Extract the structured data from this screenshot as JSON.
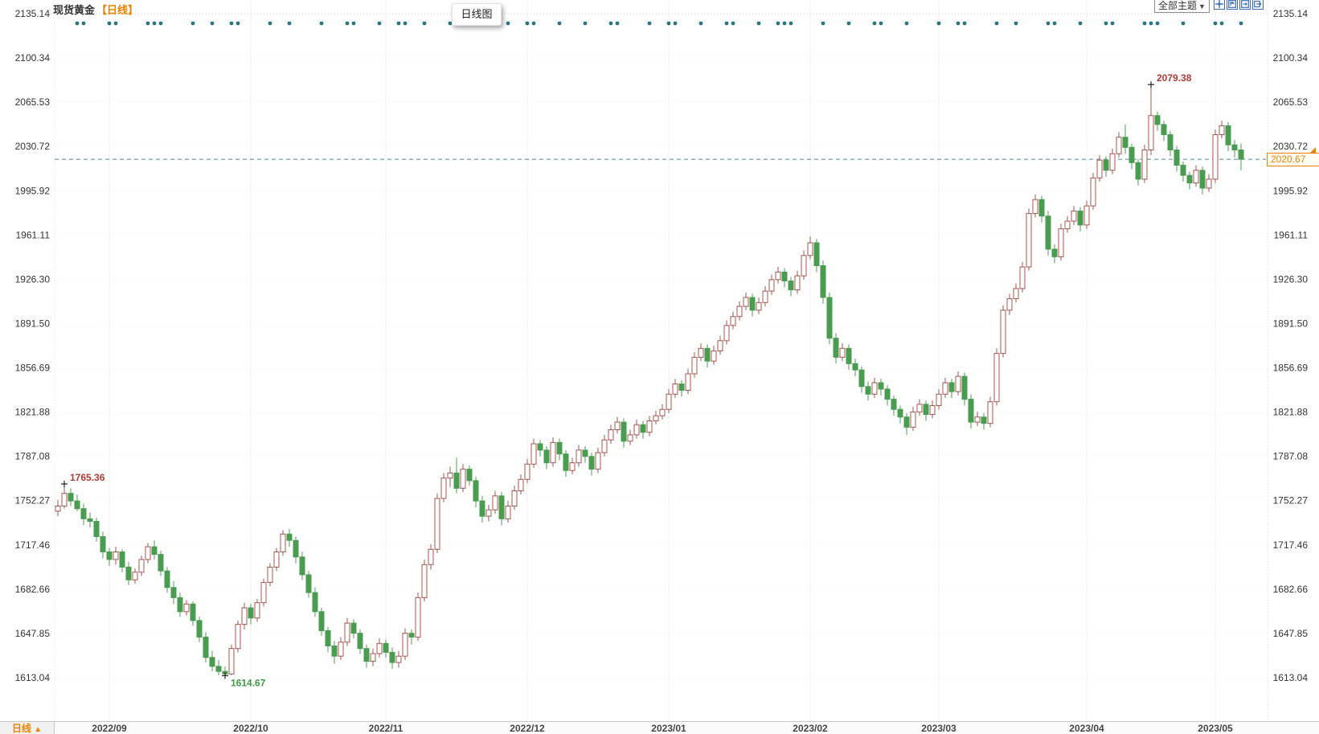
{
  "header": {
    "title": "现货黄金",
    "subtitle": "【日线】",
    "tooltip_label": "日线图",
    "theme_dropdown_label": "全部主题",
    "dropdown_arrow": "▼"
  },
  "toolbar": {
    "icons": [
      "crosshair-icon",
      "pane-up-icon",
      "pane-right-icon",
      "shift-forward-icon"
    ]
  },
  "footer": {
    "tab_label": "日线",
    "tab_arrow": "▲"
  },
  "colors": {
    "up_candle": "#a5544e",
    "down_candle": "#4a9c51",
    "event_dot": "#2b7486",
    "dashed_price_line": "#4b87a8",
    "grid_vertical": "#ececec",
    "grid_horizontal": "#f1f1f1",
    "grid_top_pink": "#f0c8c8",
    "axis_text": "#333333",
    "accent_orange": "#ef8200",
    "annotation_high": "#b13b32",
    "annotation_low": "#3f9d44"
  },
  "chart_data": {
    "type": "candlestick",
    "title": "现货黄金 日线图",
    "y_range": [
      1613.04,
      2135.14
    ],
    "y_ticks": [
      "2135.14",
      "2100.34",
      "2065.53",
      "2030.72",
      "1995.92",
      "1961.11",
      "1926.30",
      "1891.50",
      "1856.69",
      "1821.88",
      "1787.08",
      "1752.27",
      "1717.46",
      "1682.66",
      "1647.85",
      "1613.04"
    ],
    "x_ticks": [
      {
        "label": "2022/09",
        "idx": 8
      },
      {
        "label": "2022/10",
        "idx": 30
      },
      {
        "label": "2022/11",
        "idx": 51
      },
      {
        "label": "2022/12",
        "idx": 73
      },
      {
        "label": "2023/01",
        "idx": 95
      },
      {
        "label": "2023/02",
        "idx": 117
      },
      {
        "label": "2023/03",
        "idx": 137
      },
      {
        "label": "2023/04",
        "idx": 160
      },
      {
        "label": "2023/05",
        "idx": 180
      }
    ],
    "last_price": "2020.67",
    "annotations": [
      {
        "label": "1765.36",
        "idx": 1,
        "price": 1765.36,
        "type": "high",
        "placement": "above-right"
      },
      {
        "label": "1614.67",
        "idx": 26,
        "price": 1614.67,
        "type": "low",
        "placement": "below-right"
      },
      {
        "label": "2079.38",
        "idx": 170,
        "price": 2079.38,
        "type": "high",
        "placement": "above-right"
      }
    ],
    "event_dot_indices": [
      3,
      4,
      8,
      9,
      14,
      15,
      16,
      21,
      24,
      27,
      28,
      33,
      36,
      41,
      45,
      46,
      50,
      53,
      54,
      57,
      61,
      62,
      65,
      70,
      73,
      74,
      78,
      82,
      86,
      87,
      92,
      95,
      96,
      100,
      104,
      105,
      109,
      112,
      113,
      114,
      119,
      123,
      127,
      128,
      132,
      137,
      140,
      141,
      146,
      149,
      154,
      155,
      159,
      163,
      164,
      169,
      170,
      171,
      175,
      180,
      181,
      184
    ],
    "candles": [
      [
        1744,
        1753,
        1740,
        1748
      ],
      [
        1748,
        1765.36,
        1746,
        1758
      ],
      [
        1758,
        1762,
        1748,
        1752
      ],
      [
        1752,
        1757,
        1744,
        1746
      ],
      [
        1746,
        1750,
        1733,
        1738
      ],
      [
        1738,
        1743,
        1731,
        1736
      ],
      [
        1736,
        1739,
        1720,
        1724
      ],
      [
        1724,
        1728,
        1707,
        1712
      ],
      [
        1712,
        1715,
        1701,
        1706
      ],
      [
        1706,
        1716,
        1702,
        1712
      ],
      [
        1712,
        1714,
        1696,
        1700
      ],
      [
        1700,
        1704,
        1686,
        1690
      ],
      [
        1690,
        1699,
        1687,
        1696
      ],
      [
        1696,
        1709,
        1693,
        1706
      ],
      [
        1706,
        1719,
        1703,
        1716
      ],
      [
        1716,
        1721,
        1706,
        1710
      ],
      [
        1710,
        1713,
        1693,
        1697
      ],
      [
        1697,
        1700,
        1680,
        1684
      ],
      [
        1684,
        1689,
        1671,
        1676
      ],
      [
        1676,
        1680,
        1661,
        1665
      ],
      [
        1665,
        1674,
        1662,
        1671
      ],
      [
        1671,
        1673,
        1654,
        1658
      ],
      [
        1658,
        1661,
        1641,
        1645
      ],
      [
        1645,
        1649,
        1625,
        1629
      ],
      [
        1629,
        1634,
        1618,
        1622
      ],
      [
        1622,
        1627,
        1615,
        1618
      ],
      [
        1618,
        1622,
        1614.67,
        1616
      ],
      [
        1616,
        1639,
        1615,
        1636
      ],
      [
        1636,
        1658,
        1633,
        1655
      ],
      [
        1655,
        1672,
        1651,
        1668
      ],
      [
        1668,
        1671,
        1655,
        1660
      ],
      [
        1660,
        1675,
        1657,
        1672
      ],
      [
        1672,
        1691,
        1669,
        1688
      ],
      [
        1688,
        1703,
        1685,
        1700
      ],
      [
        1700,
        1715,
        1697,
        1712
      ],
      [
        1712,
        1729,
        1709,
        1726
      ],
      [
        1726,
        1730,
        1716,
        1721
      ],
      [
        1721,
        1724,
        1703,
        1708
      ],
      [
        1708,
        1712,
        1690,
        1694
      ],
      [
        1694,
        1697,
        1676,
        1680
      ],
      [
        1680,
        1684,
        1661,
        1665
      ],
      [
        1665,
        1668,
        1646,
        1650
      ],
      [
        1650,
        1653,
        1633,
        1638
      ],
      [
        1638,
        1642,
        1624,
        1630
      ],
      [
        1630,
        1645,
        1627,
        1641
      ],
      [
        1641,
        1660,
        1638,
        1656
      ],
      [
        1656,
        1659,
        1644,
        1648
      ],
      [
        1648,
        1651,
        1632,
        1636
      ],
      [
        1636,
        1639,
        1621,
        1626
      ],
      [
        1626,
        1636,
        1622,
        1632
      ],
      [
        1632,
        1644,
        1629,
        1640
      ],
      [
        1640,
        1643,
        1629,
        1633
      ],
      [
        1633,
        1637,
        1620,
        1625
      ],
      [
        1625,
        1634,
        1621,
        1630
      ],
      [
        1630,
        1652,
        1627,
        1648
      ],
      [
        1648,
        1651,
        1639,
        1645
      ],
      [
        1645,
        1680,
        1642,
        1676
      ],
      [
        1676,
        1706,
        1673,
        1702
      ],
      [
        1702,
        1718,
        1698,
        1714
      ],
      [
        1714,
        1758,
        1711,
        1754
      ],
      [
        1754,
        1774,
        1751,
        1770
      ],
      [
        1770,
        1779,
        1763,
        1774
      ],
      [
        1774,
        1786,
        1758,
        1762
      ],
      [
        1762,
        1781,
        1759,
        1777
      ],
      [
        1777,
        1780,
        1764,
        1768
      ],
      [
        1768,
        1771,
        1747,
        1752
      ],
      [
        1752,
        1756,
        1735,
        1740
      ],
      [
        1740,
        1749,
        1736,
        1745
      ],
      [
        1745,
        1760,
        1742,
        1756
      ],
      [
        1756,
        1759,
        1733,
        1738
      ],
      [
        1738,
        1752,
        1735,
        1748
      ],
      [
        1748,
        1764,
        1745,
        1760
      ],
      [
        1760,
        1773,
        1757,
        1769
      ],
      [
        1769,
        1785,
        1766,
        1781
      ],
      [
        1781,
        1801,
        1778,
        1797
      ],
      [
        1797,
        1800,
        1787,
        1792
      ],
      [
        1792,
        1795,
        1777,
        1782
      ],
      [
        1782,
        1802,
        1779,
        1798
      ],
      [
        1798,
        1801,
        1784,
        1789
      ],
      [
        1789,
        1792,
        1771,
        1776
      ],
      [
        1776,
        1786,
        1773,
        1782
      ],
      [
        1782,
        1796,
        1779,
        1792
      ],
      [
        1792,
        1795,
        1782,
        1787
      ],
      [
        1787,
        1790,
        1772,
        1777
      ],
      [
        1777,
        1794,
        1774,
        1790
      ],
      [
        1790,
        1804,
        1787,
        1800
      ],
      [
        1800,
        1812,
        1797,
        1808
      ],
      [
        1808,
        1818,
        1805,
        1814
      ],
      [
        1814,
        1817,
        1794,
        1799
      ],
      [
        1799,
        1808,
        1796,
        1804
      ],
      [
        1804,
        1816,
        1801,
        1812
      ],
      [
        1812,
        1815,
        1801,
        1806
      ],
      [
        1806,
        1819,
        1803,
        1815
      ],
      [
        1815,
        1823,
        1812,
        1819
      ],
      [
        1819,
        1828,
        1816,
        1824
      ],
      [
        1824,
        1840,
        1821,
        1836
      ],
      [
        1836,
        1848,
        1833,
        1844
      ],
      [
        1844,
        1847,
        1834,
        1839
      ],
      [
        1839,
        1856,
        1836,
        1852
      ],
      [
        1852,
        1869,
        1849,
        1865
      ],
      [
        1865,
        1876,
        1862,
        1872
      ],
      [
        1872,
        1875,
        1857,
        1862
      ],
      [
        1862,
        1874,
        1859,
        1870
      ],
      [
        1870,
        1882,
        1867,
        1878
      ],
      [
        1878,
        1894,
        1875,
        1890
      ],
      [
        1890,
        1901,
        1887,
        1897
      ],
      [
        1897,
        1909,
        1894,
        1905
      ],
      [
        1905,
        1916,
        1902,
        1912
      ],
      [
        1912,
        1915,
        1897,
        1902
      ],
      [
        1902,
        1912,
        1899,
        1908
      ],
      [
        1908,
        1921,
        1905,
        1917
      ],
      [
        1917,
        1930,
        1914,
        1926
      ],
      [
        1926,
        1936,
        1923,
        1932
      ],
      [
        1932,
        1935,
        1920,
        1925
      ],
      [
        1925,
        1928,
        1913,
        1918
      ],
      [
        1918,
        1933,
        1915,
        1929
      ],
      [
        1929,
        1949,
        1926,
        1945
      ],
      [
        1945,
        1960,
        1942,
        1955
      ],
      [
        1955,
        1958,
        1932,
        1937
      ],
      [
        1937,
        1941,
        1907,
        1912
      ],
      [
        1912,
        1916,
        1875,
        1880
      ],
      [
        1880,
        1884,
        1860,
        1865
      ],
      [
        1865,
        1876,
        1862,
        1872
      ],
      [
        1872,
        1875,
        1855,
        1860
      ],
      [
        1860,
        1864,
        1850,
        1855
      ],
      [
        1855,
        1858,
        1837,
        1842
      ],
      [
        1842,
        1846,
        1831,
        1836
      ],
      [
        1836,
        1849,
        1833,
        1845
      ],
      [
        1845,
        1848,
        1835,
        1840
      ],
      [
        1840,
        1843,
        1827,
        1832
      ],
      [
        1832,
        1835,
        1819,
        1824
      ],
      [
        1824,
        1827,
        1813,
        1818
      ],
      [
        1818,
        1821,
        1804,
        1810
      ],
      [
        1810,
        1826,
        1807,
        1822
      ],
      [
        1822,
        1832,
        1819,
        1828
      ],
      [
        1828,
        1831,
        1815,
        1820
      ],
      [
        1820,
        1831,
        1817,
        1827
      ],
      [
        1827,
        1840,
        1824,
        1836
      ],
      [
        1836,
        1849,
        1833,
        1845
      ],
      [
        1845,
        1848,
        1833,
        1838
      ],
      [
        1838,
        1854,
        1835,
        1850
      ],
      [
        1850,
        1853,
        1827,
        1832
      ],
      [
        1832,
        1836,
        1809,
        1814
      ],
      [
        1814,
        1822,
        1811,
        1818
      ],
      [
        1818,
        1821,
        1808,
        1813
      ],
      [
        1813,
        1834,
        1810,
        1830
      ],
      [
        1830,
        1872,
        1827,
        1868
      ],
      [
        1868,
        1906,
        1865,
        1902
      ],
      [
        1902,
        1915,
        1898,
        1911
      ],
      [
        1911,
        1923,
        1908,
        1919
      ],
      [
        1919,
        1940,
        1916,
        1936
      ],
      [
        1936,
        1982,
        1933,
        1978
      ],
      [
        1978,
        1993,
        1975,
        1989
      ],
      [
        1989,
        1992,
        1971,
        1976
      ],
      [
        1976,
        1980,
        1945,
        1950
      ],
      [
        1950,
        1954,
        1939,
        1944
      ],
      [
        1944,
        1970,
        1941,
        1966
      ],
      [
        1966,
        1976,
        1963,
        1972
      ],
      [
        1972,
        1984,
        1969,
        1980
      ],
      [
        1980,
        1983,
        1964,
        1969
      ],
      [
        1969,
        1988,
        1966,
        1984
      ],
      [
        1984,
        2010,
        1981,
        2006
      ],
      [
        2006,
        2024,
        2003,
        2020
      ],
      [
        2020,
        2023,
        2007,
        2012
      ],
      [
        2012,
        2029,
        2009,
        2025
      ],
      [
        2025,
        2042,
        2022,
        2038
      ],
      [
        2038,
        2048,
        2025,
        2030
      ],
      [
        2030,
        2033,
        2013,
        2018
      ],
      [
        2018,
        2021,
        2000,
        2005
      ],
      [
        2005,
        2032,
        2002,
        2028
      ],
      [
        2028,
        2079.38,
        2024,
        2055
      ],
      [
        2055,
        2058,
        2043,
        2048
      ],
      [
        2048,
        2051,
        2035,
        2040
      ],
      [
        2040,
        2043,
        2023,
        2028
      ],
      [
        2028,
        2031,
        2011,
        2016
      ],
      [
        2016,
        2019,
        2003,
        2008
      ],
      [
        2008,
        2011,
        1997,
        2002
      ],
      [
        2002,
        2016,
        1999,
        2012
      ],
      [
        2012,
        2015,
        1993,
        1998
      ],
      [
        1998,
        2009,
        1995,
        2005
      ],
      [
        2005,
        2044,
        2002,
        2040
      ],
      [
        2040,
        2051,
        2037,
        2047
      ],
      [
        2047,
        2050,
        2027,
        2032
      ],
      [
        2032,
        2036,
        2022,
        2028
      ],
      [
        2028,
        2033,
        2012,
        2020.67
      ]
    ]
  }
}
